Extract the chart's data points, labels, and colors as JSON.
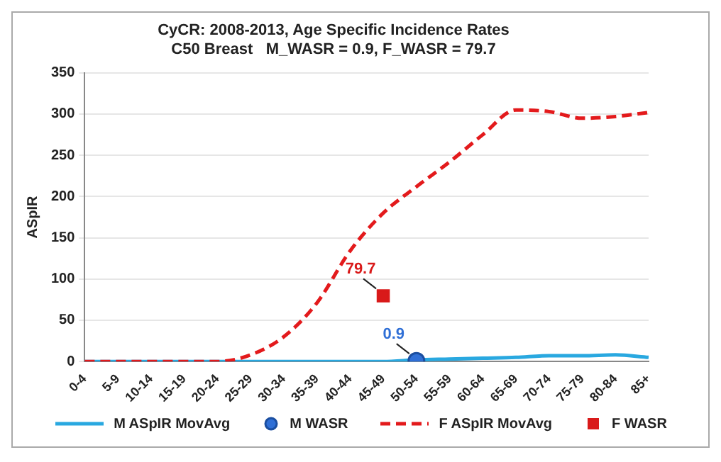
{
  "chart_data": {
    "type": "line",
    "title": [
      "CyCR: 2008-2013, Age Specific Incidence Rates",
      "C50 Breast   M_WASR = 0.9, F_WASR = 79.7"
    ],
    "ylabel": "ASpIR",
    "categories": [
      "0-4",
      "5-9",
      "10-14",
      "15-19",
      "20-24",
      "25-29",
      "30-34",
      "35-39",
      "40-44",
      "45-49",
      "50-54",
      "55-59",
      "60-64",
      "65-69",
      "70-74",
      "75-79",
      "80-84",
      "85+"
    ],
    "series": [
      {
        "name": "M ASpIR MovAvg",
        "type": "line",
        "color": "#29a8e0",
        "line_style": "solid",
        "marker": "none",
        "values": [
          0,
          0,
          0,
          0,
          0,
          0,
          0,
          0,
          0,
          0,
          2,
          3,
          4,
          5,
          7,
          7,
          8,
          5
        ]
      },
      {
        "name": "M WASR",
        "type": "scatter",
        "color": "#2f6fd6",
        "marker": "circle",
        "x": [
          "50-54"
        ],
        "values": [
          0.9
        ],
        "value_labels": [
          "0.9"
        ]
      },
      {
        "name": "F ASpIR MovAvg",
        "type": "line",
        "color": "#e31a1c",
        "line_style": "dashed",
        "marker": "none",
        "values": [
          0,
          0,
          0,
          0,
          0,
          8,
          30,
          71,
          134,
          180,
          212,
          242,
          275,
          305,
          303,
          295,
          297,
          302
        ]
      },
      {
        "name": "F WASR",
        "type": "scatter",
        "color": "#d91a1a",
        "marker": "square",
        "x": [
          "45-49"
        ],
        "values": [
          79.7
        ],
        "value_labels": [
          "79.7"
        ]
      }
    ],
    "ylim": [
      0,
      350
    ],
    "yticks": [
      0,
      50,
      100,
      150,
      200,
      250,
      300,
      350
    ],
    "grid": "y",
    "legend": "bottom"
  }
}
